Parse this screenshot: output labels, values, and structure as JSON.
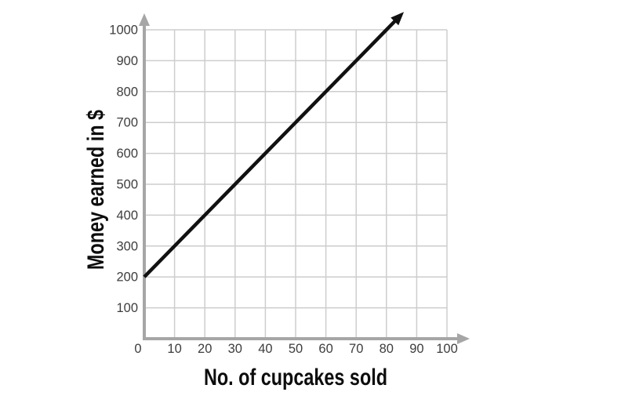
{
  "chart_data": {
    "type": "line",
    "title": "",
    "xlabel": "No. of cupcakes sold",
    "ylabel": "Money earned in $",
    "xlim": [
      0,
      100
    ],
    "ylim": [
      0,
      1000
    ],
    "x_ticks": [
      0,
      10,
      20,
      30,
      40,
      50,
      60,
      70,
      80,
      90,
      100
    ],
    "y_ticks": [
      100,
      200,
      300,
      400,
      500,
      600,
      700,
      800,
      900,
      1000
    ],
    "grid": true,
    "legend": "none",
    "axis_arrows": true,
    "series": [
      {
        "name": "money-earned-line",
        "arrow_end": true,
        "points": [
          [
            0,
            200
          ],
          [
            10,
            300
          ],
          [
            20,
            400
          ],
          [
            30,
            500
          ],
          [
            40,
            600
          ],
          [
            50,
            700
          ],
          [
            60,
            800
          ],
          [
            70,
            900
          ],
          [
            80,
            1000
          ],
          [
            84.5,
            1045
          ]
        ]
      }
    ],
    "colors": {
      "background": "#ffffff",
      "axis": "#a6a6a6",
      "grid": "#cdcdcd",
      "line": "#111111",
      "tick_label": "#3d3d3d",
      "title": "#0d0d0d"
    }
  }
}
